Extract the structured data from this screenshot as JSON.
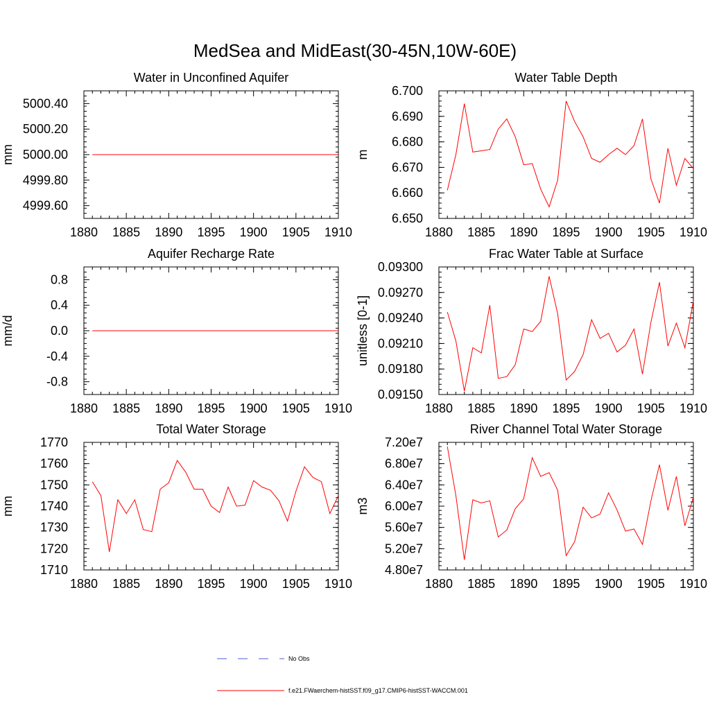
{
  "figure_title": "MedSea and MidEast(30-45N,10W-60E)",
  "colors": {
    "model": "#ff0000",
    "obs": "#4f5bd5",
    "axis": "#000000"
  },
  "legend": {
    "placement": "bottom-center",
    "items": [
      {
        "label": "No Obs",
        "style": "dashed",
        "color": "#4f5bd5"
      },
      {
        "label": "f.e21.FWaerchem-histSST.f09_g17.CMIP6-histSST-WACCM.001",
        "style": "solid",
        "color": "#ff0000"
      }
    ]
  },
  "chart_data": [
    {
      "type": "line",
      "title": "Water in Unconfined Aquifer",
      "ylabel": "mm",
      "xlim": [
        1880,
        1910
      ],
      "ylim": [
        4999.5,
        5000.5
      ],
      "xticks": [
        1880,
        1885,
        1890,
        1895,
        1900,
        1905,
        1910
      ],
      "yticks": [
        4999.6,
        4999.8,
        5000.0,
        5000.2,
        5000.4
      ],
      "ytick_labels": [
        "4999.60",
        "4999.80",
        "5000.00",
        "5000.20",
        "5000.40"
      ],
      "x": [
        1881,
        1882,
        1883,
        1884,
        1885,
        1886,
        1887,
        1888,
        1889,
        1890,
        1891,
        1892,
        1893,
        1894,
        1895,
        1896,
        1897,
        1898,
        1899,
        1900,
        1901,
        1902,
        1903,
        1904,
        1905,
        1906,
        1907,
        1908,
        1909,
        1910
      ],
      "series": [
        {
          "values": [
            5000,
            5000,
            5000,
            5000,
            5000,
            5000,
            5000,
            5000,
            5000,
            5000,
            5000,
            5000,
            5000,
            5000,
            5000,
            5000,
            5000,
            5000,
            5000,
            5000,
            5000,
            5000,
            5000,
            5000,
            5000,
            5000,
            5000,
            5000,
            5000,
            5000
          ]
        }
      ]
    },
    {
      "type": "line",
      "title": "Water Table Depth",
      "ylabel": "m",
      "xlim": [
        1880,
        1910
      ],
      "ylim": [
        6.65,
        6.7
      ],
      "xticks": [
        1880,
        1885,
        1890,
        1895,
        1900,
        1905,
        1910
      ],
      "yticks": [
        6.65,
        6.66,
        6.67,
        6.68,
        6.69,
        6.7
      ],
      "ytick_labels": [
        "6.650",
        "6.660",
        "6.670",
        "6.680",
        "6.690",
        "6.700"
      ],
      "x": [
        1881,
        1882,
        1883,
        1884,
        1885,
        1886,
        1887,
        1888,
        1889,
        1890,
        1891,
        1892,
        1893,
        1894,
        1895,
        1896,
        1897,
        1898,
        1899,
        1900,
        1901,
        1902,
        1903,
        1904,
        1905,
        1906,
        1907,
        1908,
        1909,
        1910
      ],
      "series": [
        {
          "values": [
            6.661,
            6.675,
            6.695,
            6.676,
            6.6765,
            6.677,
            6.685,
            6.689,
            6.682,
            6.671,
            6.6715,
            6.6615,
            6.6545,
            6.665,
            6.696,
            6.688,
            6.682,
            6.6735,
            6.672,
            6.675,
            6.6775,
            6.675,
            6.6785,
            6.689,
            6.6655,
            6.656,
            6.6775,
            6.663,
            6.6735,
            6.6695
          ]
        }
      ]
    },
    {
      "type": "line",
      "title": "Aquifer Recharge Rate",
      "ylabel": "mm/d",
      "xlim": [
        1880,
        1910
      ],
      "ylim": [
        -1.0,
        1.0
      ],
      "xticks": [
        1880,
        1885,
        1890,
        1895,
        1900,
        1905,
        1910
      ],
      "yticks": [
        -0.8,
        -0.4,
        0.0,
        0.4,
        0.8
      ],
      "ytick_labels": [
        "-0.8",
        "-0.4",
        "0.0",
        "0.4",
        "0.8"
      ],
      "x": [
        1881,
        1882,
        1883,
        1884,
        1885,
        1886,
        1887,
        1888,
        1889,
        1890,
        1891,
        1892,
        1893,
        1894,
        1895,
        1896,
        1897,
        1898,
        1899,
        1900,
        1901,
        1902,
        1903,
        1904,
        1905,
        1906,
        1907,
        1908,
        1909,
        1910
      ],
      "series": [
        {
          "values": [
            0,
            0,
            0,
            0,
            0,
            0,
            0,
            0,
            0,
            0,
            0,
            0,
            0,
            0,
            0,
            0,
            0,
            0,
            0,
            0,
            0,
            0,
            0,
            0,
            0,
            0,
            0,
            0,
            0,
            0
          ]
        }
      ]
    },
    {
      "type": "line",
      "title": "Frac Water Table at Surface",
      "ylabel": "unitless [0-1]",
      "xlim": [
        1880,
        1910
      ],
      "ylim": [
        0.0915,
        0.093
      ],
      "xticks": [
        1880,
        1885,
        1890,
        1895,
        1900,
        1905,
        1910
      ],
      "yticks": [
        0.0915,
        0.0918,
        0.0921,
        0.0924,
        0.0927,
        0.093
      ],
      "ytick_labels": [
        "0.09150",
        "0.09180",
        "0.09210",
        "0.09240",
        "0.09270",
        "0.09300"
      ],
      "x": [
        1881,
        1882,
        1883,
        1884,
        1885,
        1886,
        1887,
        1888,
        1889,
        1890,
        1891,
        1892,
        1893,
        1894,
        1895,
        1896,
        1897,
        1898,
        1899,
        1900,
        1901,
        1902,
        1903,
        1904,
        1905,
        1906,
        1907,
        1908,
        1909,
        1910
      ],
      "series": [
        {
          "values": [
            0.09247,
            0.09213,
            0.09154,
            0.09205,
            0.09199,
            0.09255,
            0.09169,
            0.09171,
            0.09185,
            0.09227,
            0.09224,
            0.09236,
            0.09289,
            0.09245,
            0.09167,
            0.09177,
            0.09197,
            0.09238,
            0.09216,
            0.09222,
            0.092,
            0.09208,
            0.09227,
            0.09174,
            0.09235,
            0.09282,
            0.09207,
            0.09234,
            0.09205,
            0.0926
          ]
        }
      ]
    },
    {
      "type": "line",
      "title": "Total Water Storage",
      "ylabel": "mm",
      "xlim": [
        1880,
        1910
      ],
      "ylim": [
        1710,
        1770
      ],
      "xticks": [
        1880,
        1885,
        1890,
        1895,
        1900,
        1905,
        1910
      ],
      "yticks": [
        1710,
        1720,
        1730,
        1740,
        1750,
        1760,
        1770
      ],
      "ytick_labels": [
        "1710",
        "1720",
        "1730",
        "1740",
        "1750",
        "1760",
        "1770"
      ],
      "x": [
        1881,
        1882,
        1883,
        1884,
        1885,
        1886,
        1887,
        1888,
        1889,
        1890,
        1891,
        1892,
        1893,
        1894,
        1895,
        1896,
        1897,
        1898,
        1899,
        1900,
        1901,
        1902,
        1903,
        1904,
        1905,
        1906,
        1907,
        1908,
        1909,
        1910
      ],
      "series": [
        {
          "values": [
            1751.5,
            1745,
            1718.5,
            1743,
            1736.5,
            1743,
            1729,
            1728,
            1748,
            1751,
            1761.5,
            1756,
            1748,
            1748,
            1740,
            1737,
            1749,
            1740,
            1740.5,
            1752,
            1749,
            1747.5,
            1742.5,
            1733,
            1747,
            1758.5,
            1753.5,
            1751.5,
            1736.5,
            1745
          ]
        }
      ]
    },
    {
      "type": "line",
      "title": "River Channel Total Water Storage",
      "ylabel": "m3",
      "xlim": [
        1880,
        1910
      ],
      "ylim": [
        48000000,
        72000000
      ],
      "xticks": [
        1880,
        1885,
        1890,
        1895,
        1900,
        1905,
        1910
      ],
      "yticks": [
        48000000,
        52000000,
        56000000,
        60000000,
        64000000,
        68000000,
        72000000
      ],
      "ytick_labels": [
        "4.80e7",
        "5.20e7",
        "5.60e7",
        "6.00e7",
        "6.40e7",
        "6.80e7",
        "7.20e7"
      ],
      "x": [
        1881,
        1882,
        1883,
        1884,
        1885,
        1886,
        1887,
        1888,
        1889,
        1890,
        1891,
        1892,
        1893,
        1894,
        1895,
        1896,
        1897,
        1898,
        1899,
        1900,
        1901,
        1902,
        1903,
        1904,
        1905,
        1906,
        1907,
        1908,
        1909,
        1910
      ],
      "series": [
        {
          "values": [
            71200000,
            62000000,
            49900000,
            61200000,
            60600000,
            61000000,
            54200000,
            55500000,
            59500000,
            61400000,
            69100000,
            65600000,
            66300000,
            63000000,
            50700000,
            53300000,
            59800000,
            57800000,
            58500000,
            62500000,
            59300000,
            55300000,
            55700000,
            52800000,
            61000000,
            67800000,
            59200000,
            65600000,
            56300000,
            61700000
          ]
        }
      ]
    }
  ]
}
